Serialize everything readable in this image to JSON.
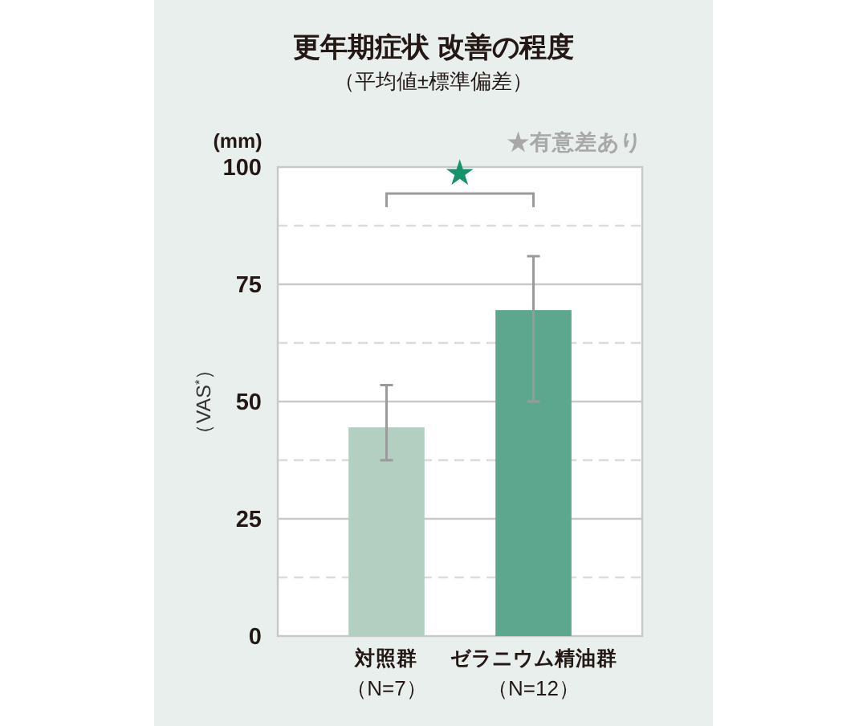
{
  "chart_data": {
    "type": "bar",
    "title": "更年期症状 改善の程度",
    "subtitle": "（平均値±標準偏差）",
    "ylabel": "（VAS$^{*}$）",
    "categories": [
      "対照群（N=7）",
      "ゼラニウム精油群（N=12）"
    ],
    "values": [
      44.5,
      69.5
    ],
    "colors": [
      "#b3cfc2",
      "#5ca78e"
    ],
    "errors": [
      [
        37.5,
        53.5
      ],
      [
        50,
        81
      ]
    ],
    "ylim": [
      0,
      100
    ],
    "yticks": [
      0,
      {
        "value": 12.5,
        "label": null
      },
      25,
      {
        "value": 37.5,
        "label": null
      },
      50,
      {
        "value": 62.5,
        "label": null
      },
      75,
      {
        "value": 87.5,
        "label": null
      },
      100
    ],
    "grid": "y",
    "annotations": [
      "(mm)",
      "★有意差あり",
      "★"
    ]
  }
}
